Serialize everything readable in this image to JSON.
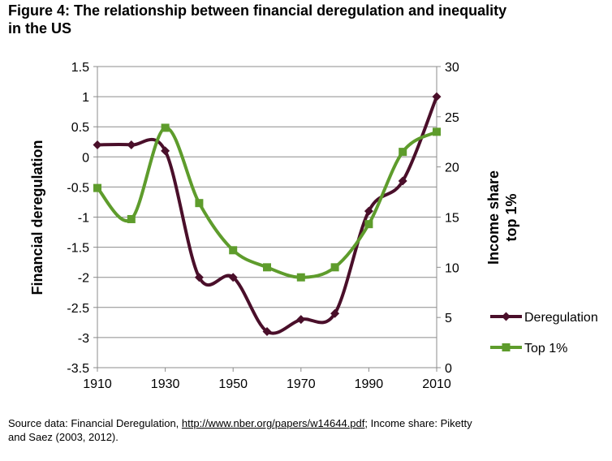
{
  "figure": {
    "title_line1": "Figure 4: The relationship between financial deregulation and inequality",
    "title_line2": "in the US",
    "source_prefix": "Source data: Financial Deregulation, ",
    "source_link": "http://www.nber.org/papers/w14644.pdf",
    "source_suffix": "; Income share: Piketty",
    "source_line2": "and Saez (2003, 2012)."
  },
  "chart_data": {
    "type": "line",
    "title": "",
    "xlabel": "",
    "ylabel": "Financial deregulation",
    "y2label_line1": "Income share",
    "y2label_line2": "top 1%",
    "x": [
      1910,
      1920,
      1930,
      1940,
      1950,
      1960,
      1970,
      1980,
      1990,
      2000,
      2010
    ],
    "xticks": [
      "1910",
      "1930",
      "1950",
      "1970",
      "1990",
      "2010"
    ],
    "xlim": [
      1910,
      2010
    ],
    "ylim": [
      -3.5,
      1.5
    ],
    "yticks": [
      "1.5",
      "1",
      "0.5",
      "0",
      "-0.5",
      "-1",
      "-1.5",
      "-2",
      "-2.5",
      "-3",
      "-3.5"
    ],
    "y2lim": [
      0,
      30
    ],
    "y2ticks": [
      "30",
      "25",
      "20",
      "15",
      "10",
      "5",
      "0"
    ],
    "grid": true,
    "legend_position": "right",
    "series": [
      {
        "name": "Deregulation",
        "axis": "left",
        "color": "#4a0f2a",
        "marker": "diamond",
        "values": [
          0.2,
          0.2,
          0.1,
          -2.0,
          -2.0,
          -2.9,
          -2.7,
          -2.6,
          -0.9,
          -0.4,
          1.0
        ]
      },
      {
        "name": "Top 1%",
        "axis": "right",
        "color": "#5e9c2c",
        "marker": "square",
        "values": [
          17.9,
          14.8,
          23.9,
          16.4,
          11.7,
          10.0,
          9.0,
          10.0,
          14.3,
          21.5,
          23.5
        ]
      }
    ]
  }
}
